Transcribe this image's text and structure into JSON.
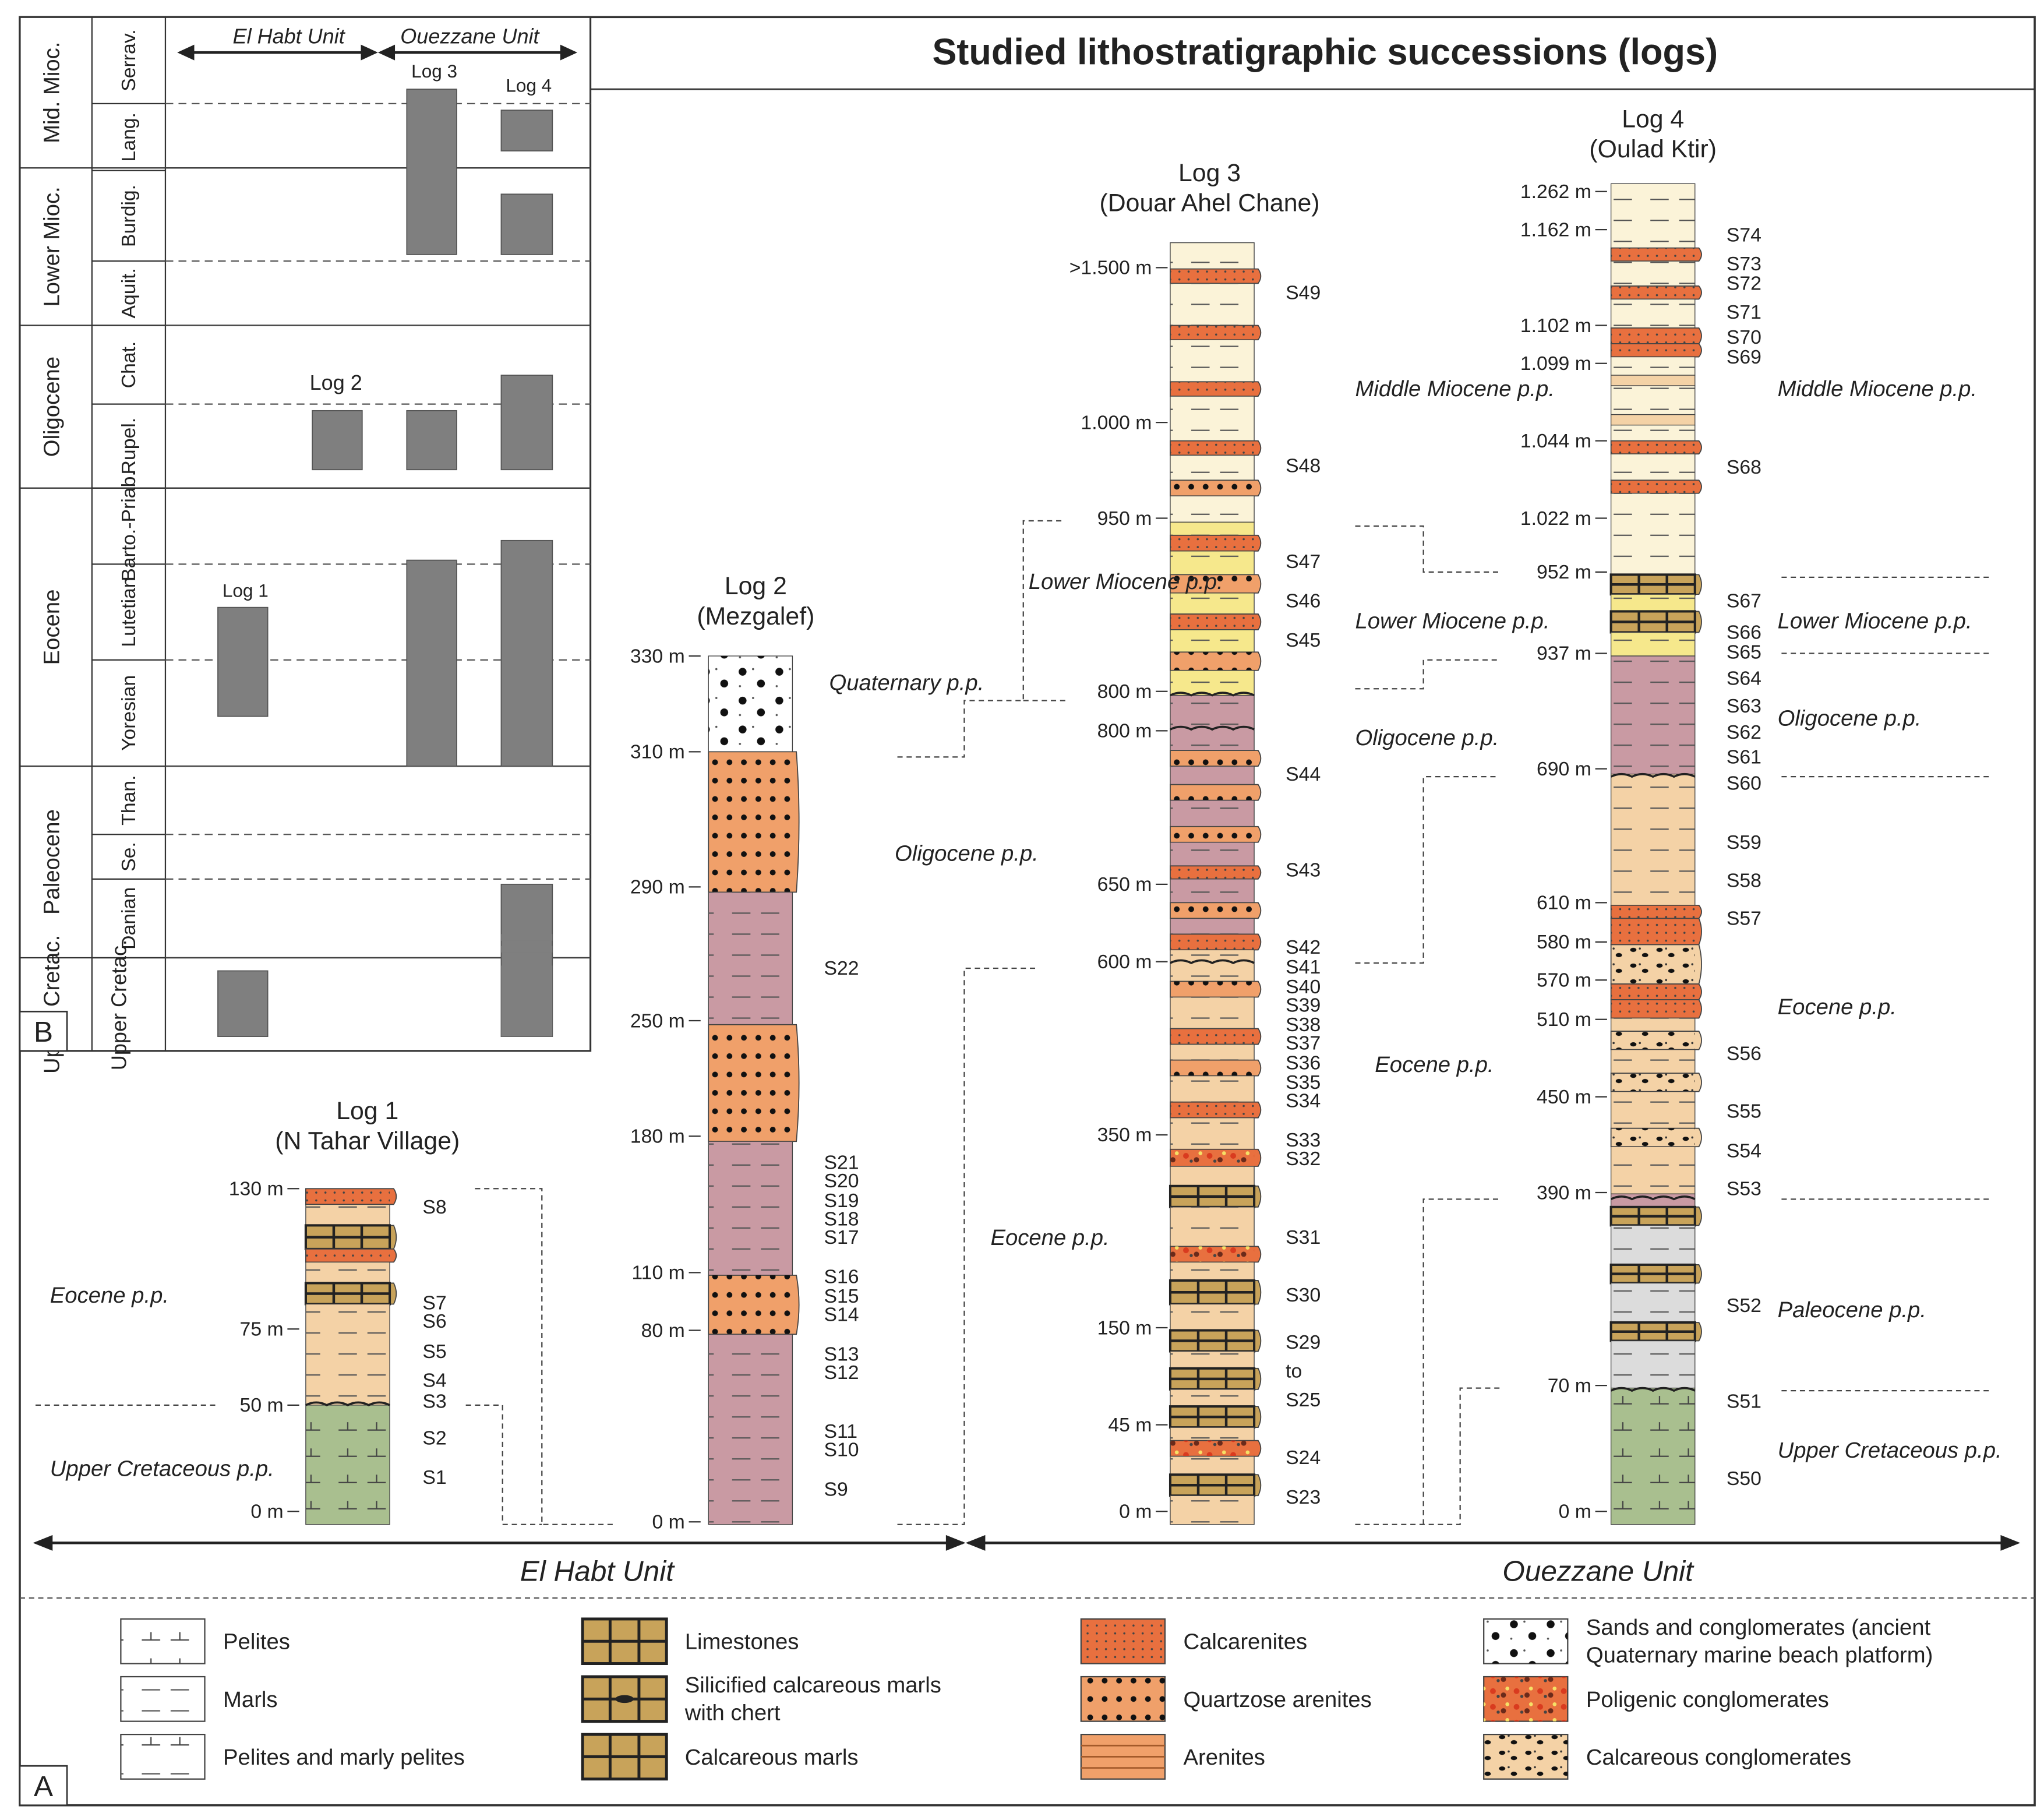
{
  "title": "Studied lithostratigraphic successions (logs)",
  "panel_labels": {
    "a": "A",
    "b": "B"
  },
  "units": {
    "el_habt": "El Habt Unit",
    "ouezzane": "Ouezzane Unit"
  },
  "panel_b": {
    "unit_headers": [
      "El Habt Unit",
      "Ouezzane Unit"
    ],
    "epochs": [
      {
        "name": "Mid. Mioc.",
        "stages": [
          "Serrav.",
          "Lang."
        ]
      },
      {
        "name": "Lower Mioc.",
        "stages": [
          "Burdig.",
          "Aquit."
        ]
      },
      {
        "name": "Oligocene",
        "stages": [
          "Chat.",
          "Rupel."
        ]
      },
      {
        "name": "Eocene",
        "stages": [
          "Barto.-Priab.",
          "Lutetian",
          "Yoresian"
        ]
      },
      {
        "name": "Paleocene",
        "stages": [
          "Than.",
          "Se.",
          "Danian"
        ]
      },
      {
        "name": "Upper Cretac.",
        "stages": []
      }
    ],
    "log_labels": [
      "Log 1",
      "Log 2",
      "Log 3",
      "Log 4"
    ],
    "bars": [
      {
        "log": "Log 1",
        "from": "Yoresian",
        "to": "Lutetian"
      },
      {
        "log": "Log 1",
        "from": "Upper Cretac.",
        "to": "Upper Cretac."
      },
      {
        "log": "Log 2",
        "from": "Rupel.",
        "to": "Rupel."
      },
      {
        "log": "Log 3",
        "from": "Rupel.",
        "to": "Rupel."
      },
      {
        "log": "Log 3",
        "from": "Yoresian",
        "to": "Barto.-Priab."
      },
      {
        "log": "Log 3",
        "from": "Aquit.",
        "to": "Serrav."
      },
      {
        "log": "Log 4",
        "from": "Upper Cretac.",
        "to": "Danian"
      },
      {
        "log": "Log 4",
        "from": "Yoresian",
        "to": "Barto.-Priab."
      },
      {
        "log": "Log 4",
        "from": "Rupel.",
        "to": "Chat."
      },
      {
        "log": "Log 4",
        "from": "Aquit.",
        "to": "Burdig."
      },
      {
        "log": "Log 4",
        "from": "Lang.",
        "to": "Lang."
      }
    ]
  },
  "logs": {
    "log1": {
      "title": "Log 1",
      "location": "(N Tahar Village)",
      "depths": [
        "130 m",
        "75 m",
        "50 m",
        "0 m"
      ],
      "samples": [
        "S8",
        "S7",
        "S6",
        "S5",
        "S4",
        "S3",
        "S2",
        "S1"
      ],
      "ages": [
        "Eocene p.p.",
        "Upper Cretaceous p.p."
      ]
    },
    "log2": {
      "title": "Log 2",
      "location": "(Mezgalef)",
      "depths": [
        "330 m",
        "310 m",
        "290 m",
        "250 m",
        "180 m",
        "110 m",
        "80 m",
        "0 m"
      ],
      "samples": [
        "S22",
        "S21",
        "S20",
        "S19",
        "S18",
        "S17",
        "S16",
        "S15",
        "S14",
        "S13",
        "S12",
        "S11",
        "S10",
        "S9"
      ],
      "ages": [
        "Quaternary p.p.",
        "Oligocene p.p."
      ]
    },
    "log3": {
      "title": "Log 3",
      "location": "(Douar Ahel Chane)",
      "depths": [
        ">1.500 m",
        "1.000 m",
        "950 m",
        "800 m",
        "800 m",
        "650 m",
        "600 m",
        "350 m",
        "150 m",
        "45 m",
        "0 m"
      ],
      "samples": [
        "S49",
        "S48",
        "S47",
        "S46",
        "S45",
        "S44",
        "S43",
        "S42",
        "S41",
        "S40",
        "S39",
        "S38",
        "S37",
        "S36",
        "S35",
        "S34",
        "S33",
        "S32",
        "S31",
        "S30",
        "S29",
        "to",
        "S25",
        "S24",
        "S23"
      ],
      "ages": [
        "Lower Miocene p.p.",
        "Eocene p.p."
      ]
    },
    "log4": {
      "title": "Log 4",
      "location": "(Oulad Ktir)",
      "depths": [
        "1.262 m",
        "1.162 m",
        "1.102 m",
        "1.099 m",
        "1.044 m",
        "1.022 m",
        "952 m",
        "937 m",
        "690 m",
        "610 m",
        "580 m",
        "570 m",
        "510 m",
        "450 m",
        "390 m",
        "70 m",
        "0 m"
      ],
      "samples": [
        "S74",
        "S73",
        "S72",
        "S71",
        "S70",
        "S69",
        "S68",
        "S67",
        "S66",
        "S65",
        "S64",
        "S63",
        "S62",
        "S61",
        "S60",
        "S59",
        "S58",
        "S57",
        "S56",
        "S55",
        "S54",
        "S53",
        "S52",
        "S51",
        "S50"
      ],
      "ages_left": [
        "Middle Miocene p.p.",
        "Lower Miocene p.p.",
        "Oligocene p.p.",
        "Eocene p.p."
      ],
      "ages_right": [
        "Middle Miocene p.p.",
        "Lower Miocene p.p.",
        "Oligocene p.p.",
        "Eocene p.p.",
        "Paleocene p.p.",
        "Upper Cretaceous p.p."
      ]
    }
  },
  "legend": [
    {
      "label": "Pelites"
    },
    {
      "label": "Marls"
    },
    {
      "label": "Pelites and marly pelites"
    },
    {
      "label": "Limestones"
    },
    {
      "label": "Silicified calcareous marls",
      "label2": "with chert"
    },
    {
      "label": "Calcareous marls"
    },
    {
      "label": "Calcarenites"
    },
    {
      "label": "Quartzose arenites"
    },
    {
      "label": "Arenites"
    },
    {
      "label": "Sands and conglomerates (ancient",
      "label2": "Quaternary marine beach platform)"
    },
    {
      "label": "Poligenic conglomerates"
    },
    {
      "label": "Calcareous conglomerates"
    }
  ],
  "colors": {
    "pelite_green": "#a9bf8f",
    "marl_pink": "#c99aa3",
    "tan": "#f4d2a6",
    "orange": "#f0a06a",
    "red_orange": "#e8703f",
    "yellow": "#f6e88c",
    "cream": "#fbf3d8",
    "gray_block": "#7f7f7f",
    "light_gray": "#dcdcdc",
    "limestone_brown": "#c8a35a"
  }
}
